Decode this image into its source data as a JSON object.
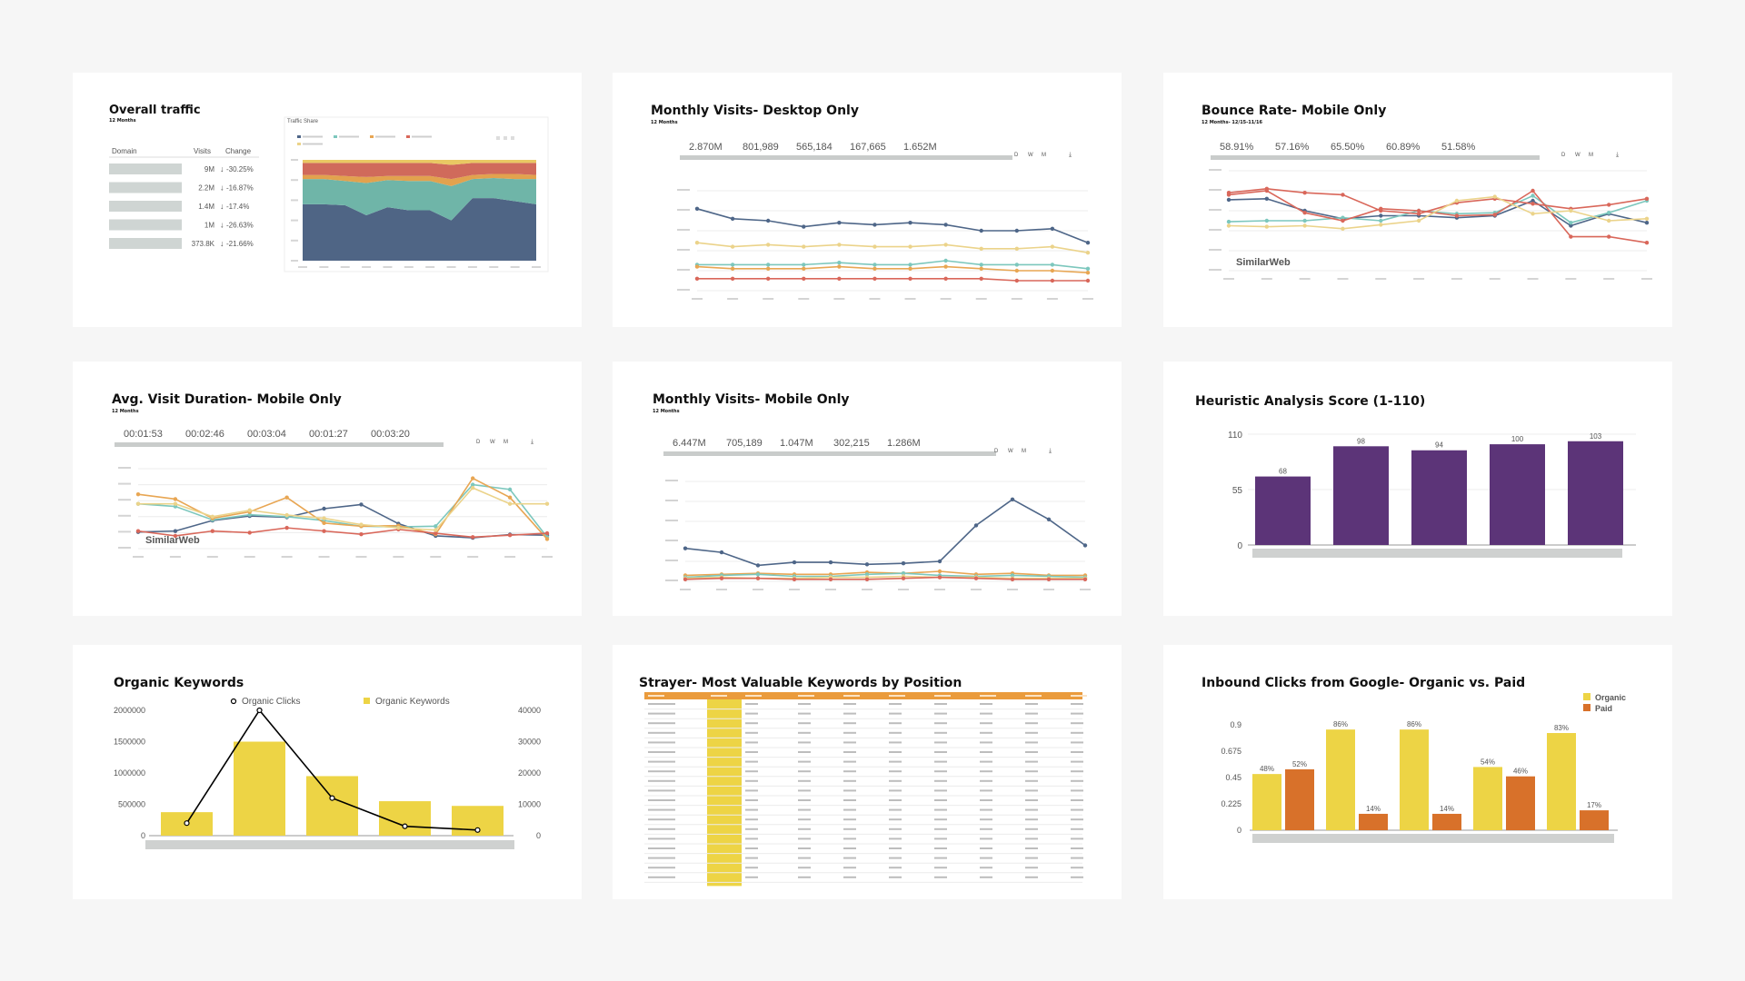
{
  "cards": {
    "overall": {
      "title": "Overall traffic",
      "subtitle": "12 Months",
      "col_domain": "Domain",
      "col_visits": "Visits",
      "col_change": "Change",
      "share_title": "Traffic Share"
    },
    "desktop": {
      "title": "Monthly Visits- Desktop Only",
      "subtitle": "12 Months",
      "toggles": [
        "D",
        "W",
        "M"
      ]
    },
    "bounce": {
      "title": "Bounce Rate- Mobile Only",
      "subtitle": "12 Months- 12/15-11/16",
      "toggles": [
        "D",
        "W",
        "M"
      ],
      "watermark": "SimilarWeb"
    },
    "duration": {
      "title": "Avg. Visit Duration- Mobile Only",
      "subtitle": "12 Months",
      "toggles": [
        "D",
        "W",
        "M"
      ],
      "watermark": "SimilarWeb"
    },
    "mobile": {
      "title": "Monthly Visits- Mobile Only",
      "subtitle": "12 Months",
      "toggles": [
        "D",
        "W",
        "M"
      ]
    },
    "heuristic": {
      "title": "Heuristic Analysis Score (1-110)"
    },
    "organic": {
      "title": "Organic Keywords"
    },
    "strayer": {
      "title": "Strayer- Most Valuable Keywords by Position"
    },
    "inbound": {
      "title": "Inbound Clicks from Google- Organic vs. Paid"
    }
  },
  "colors": {
    "blue": "#4e6688",
    "teal": "#7cc7bd",
    "orange": "#e8a653",
    "red": "#d9675a",
    "yellow": "#ebd38a",
    "purple": "#5c3478",
    "gold": "#edd445",
    "rust": "#d8712a",
    "accent": "#6d93c5",
    "down": "#d9534f"
  },
  "chart_data": [
    {
      "id": "overall",
      "type": "table",
      "columns": [
        "Domain",
        "Visits",
        "Change"
      ],
      "rows": [
        [
          "",
          "9M",
          "-30.25%"
        ],
        [
          "",
          "2.2M",
          "-16.87%"
        ],
        [
          "",
          "1.4M",
          "-17.4%"
        ],
        [
          "",
          "1M",
          "-26.63%"
        ],
        [
          "",
          "373.8K",
          "-21.66%"
        ]
      ]
    },
    {
      "id": "overall-share",
      "type": "area",
      "title": "Traffic Share",
      "series": [
        {
          "values": [
            0.56,
            0.56,
            0.55,
            0.45,
            0.53,
            0.5,
            0.5,
            0.4,
            0.62,
            0.62,
            0.59,
            0.56
          ]
        },
        {
          "values": [
            0.25,
            0.25,
            0.24,
            0.32,
            0.27,
            0.29,
            0.29,
            0.34,
            0.19,
            0.2,
            0.22,
            0.25
          ]
        },
        {
          "values": [
            0.04,
            0.04,
            0.05,
            0.06,
            0.04,
            0.05,
            0.05,
            0.07,
            0.04,
            0.04,
            0.05,
            0.04
          ]
        },
        {
          "values": [
            0.12,
            0.12,
            0.13,
            0.14,
            0.13,
            0.13,
            0.13,
            0.14,
            0.12,
            0.11,
            0.11,
            0.12
          ]
        },
        {
          "values": [
            0.03,
            0.03,
            0.03,
            0.03,
            0.03,
            0.03,
            0.03,
            0.05,
            0.03,
            0.03,
            0.03,
            0.03
          ]
        }
      ]
    },
    {
      "id": "desktop",
      "type": "line",
      "totals": [
        "2.870M",
        "801,989",
        "565,184",
        "167,665",
        "1.652M"
      ],
      "series": [
        {
          "values": [
            4.1,
            3.6,
            3.5,
            3.2,
            3.4,
            3.3,
            3.4,
            3.3,
            3.0,
            3.0,
            3.1,
            2.4
          ]
        },
        {
          "values": [
            2.4,
            2.2,
            2.3,
            2.2,
            2.3,
            2.2,
            2.2,
            2.3,
            2.1,
            2.1,
            2.2,
            1.9
          ]
        },
        {
          "values": [
            1.3,
            1.3,
            1.3,
            1.3,
            1.4,
            1.3,
            1.3,
            1.5,
            1.3,
            1.3,
            1.3,
            1.1
          ]
        },
        {
          "values": [
            1.2,
            1.1,
            1.1,
            1.1,
            1.2,
            1.1,
            1.1,
            1.2,
            1.1,
            1.0,
            1.0,
            0.9
          ]
        },
        {
          "values": [
            0.6,
            0.6,
            0.6,
            0.6,
            0.6,
            0.6,
            0.6,
            0.6,
            0.6,
            0.5,
            0.5,
            0.5
          ]
        }
      ],
      "ylim": [
        0,
        5
      ]
    },
    {
      "id": "bounce",
      "type": "line",
      "totals": [
        "58.91%",
        "57.16%",
        "65.50%",
        "60.89%",
        "51.58%"
      ],
      "series": [
        {
          "values": [
            71,
            72,
            60,
            52,
            55,
            55,
            53,
            55,
            70,
            45,
            57,
            48
          ]
        },
        {
          "values": [
            49,
            50,
            50,
            53,
            50,
            60,
            57,
            58,
            75,
            48,
            58,
            70
          ]
        },
        {
          "values": [
            78,
            82,
            78,
            76,
            60,
            57,
            68,
            72,
            67,
            62,
            66,
            72
          ]
        },
        {
          "values": [
            76,
            80,
            58,
            50,
            62,
            60,
            55,
            56,
            80,
            34,
            34,
            28
          ]
        },
        {
          "values": [
            45,
            44,
            45,
            42,
            46,
            50,
            70,
            74,
            57,
            60,
            50,
            52
          ]
        }
      ],
      "ylim": [
        0,
        100
      ]
    },
    {
      "id": "duration",
      "type": "line",
      "totals": [
        "00:01:53",
        "00:02:46",
        "00:03:04",
        "00:01:27",
        "00:03:20"
      ],
      "series": [
        {
          "values": [
            52,
            55,
            88,
            102,
            98,
            125,
            138,
            78,
            40,
            34,
            44,
            42
          ]
        },
        {
          "values": [
            140,
            132,
            90,
            106,
            100,
            88,
            70,
            68,
            70,
            200,
            185,
            36
          ]
        },
        {
          "values": [
            170,
            155,
            95,
            115,
            160,
            80,
            70,
            72,
            45,
            220,
            160,
            30
          ]
        },
        {
          "values": [
            55,
            40,
            55,
            50,
            65,
            55,
            45,
            60,
            48,
            36,
            42,
            48
          ]
        },
        {
          "values": [
            140,
            140,
            100,
            120,
            105,
            95,
            75,
            65,
            58,
            190,
            140,
            140
          ]
        }
      ],
      "ylim": [
        0,
        250
      ]
    },
    {
      "id": "mobile",
      "type": "line",
      "totals": [
        "6.447M",
        "705,189",
        "1.047M",
        "302,215",
        "1.286M"
      ],
      "series": [
        {
          "values": [
            3.3,
            2.9,
            1.6,
            1.9,
            1.9,
            1.7,
            1.8,
            2.0,
            5.6,
            8.2,
            6.2,
            3.6
          ]
        },
        {
          "values": [
            0.6,
            0.7,
            0.8,
            0.7,
            0.7,
            0.9,
            0.8,
            1.0,
            0.7,
            0.8,
            0.6,
            0.6
          ]
        },
        {
          "values": [
            0.4,
            0.6,
            0.7,
            0.5,
            0.5,
            0.7,
            0.8,
            0.6,
            0.5,
            0.6,
            0.5,
            0.4
          ]
        },
        {
          "values": [
            0.3,
            0.4,
            0.3,
            0.3,
            0.4,
            0.4,
            0.5,
            0.4,
            0.4,
            0.3,
            0.3,
            0.3
          ]
        },
        {
          "values": [
            0.2,
            0.3,
            0.3,
            0.2,
            0.2,
            0.2,
            0.3,
            0.4,
            0.3,
            0.2,
            0.2,
            0.2
          ]
        }
      ],
      "ylim": [
        0,
        10
      ]
    },
    {
      "id": "heuristic",
      "type": "bar",
      "values": [
        68,
        98,
        94,
        100,
        103
      ],
      "yticks": [
        "110",
        "55",
        "0"
      ],
      "ylim": [
        0,
        110
      ]
    },
    {
      "id": "organic",
      "type": "bar",
      "series": [
        {
          "name": "Organic Clicks",
          "type": "line",
          "axis": "left",
          "values": [
            200000,
            2000000,
            600000,
            150000,
            90000
          ]
        },
        {
          "name": "Organic Keywords",
          "type": "bar",
          "axis": "right",
          "values": [
            7500,
            30000,
            19000,
            11000,
            9500
          ]
        }
      ],
      "yticks_left": [
        "2000000",
        "1500000",
        "1000000",
        "500000",
        "0"
      ],
      "yticks_right": [
        "40000",
        "30000",
        "20000",
        "10000",
        "0"
      ],
      "ylim_left": [
        0,
        2000000
      ],
      "ylim_right": [
        0,
        40000
      ]
    },
    {
      "id": "strayer",
      "type": "table",
      "rows": 19,
      "columns": 10
    },
    {
      "id": "inbound",
      "type": "bar",
      "series": [
        {
          "name": "Organic",
          "values": [
            0.48,
            0.86,
            0.86,
            0.54,
            0.83
          ],
          "labels": [
            "48%",
            "86%",
            "86%",
            "54%",
            "83%"
          ]
        },
        {
          "name": "Paid",
          "values": [
            0.52,
            0.14,
            0.14,
            0.46,
            0.17
          ],
          "labels": [
            "52%",
            "14%",
            "14%",
            "46%",
            "17%"
          ]
        }
      ],
      "yticks": [
        "0.9",
        "0.675",
        "0.45",
        "0.225",
        "0"
      ],
      "ylim": [
        0,
        0.9
      ]
    }
  ]
}
